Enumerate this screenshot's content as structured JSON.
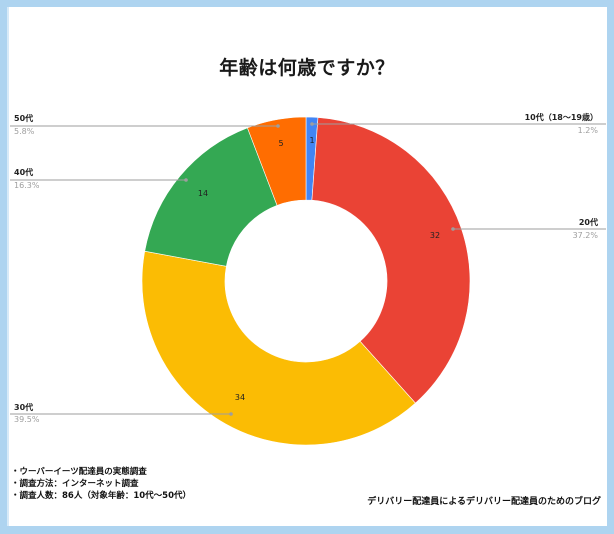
{
  "chart_data": {
    "type": "pie",
    "variant": "donut",
    "title": "年齢は何歳ですか？",
    "categories": [
      "10代（18〜19歳）",
      "20代",
      "30代",
      "40代",
      "50代"
    ],
    "values": [
      1,
      32,
      34,
      14,
      5
    ],
    "percentages": [
      "1.2%",
      "37.2%",
      "39.5%",
      "16.3%",
      "5.8%"
    ],
    "colors": [
      "#4285f4",
      "#ea4335",
      "#fbbc04",
      "#34a853",
      "#ff6d01"
    ],
    "total": 86,
    "start_angle_deg": 0,
    "direction": "clockwise",
    "legend_position": "callout labels"
  },
  "labels": {
    "teens": {
      "name": "10代（18〜19歳）",
      "pct": "1.2%",
      "value": "1"
    },
    "twenties": {
      "name": "20代",
      "pct": "37.2%",
      "value": "32"
    },
    "thirties": {
      "name": "30代",
      "pct": "39.5%",
      "value": "34"
    },
    "forties": {
      "name": "40代",
      "pct": "16.3%",
      "value": "14"
    },
    "fifties": {
      "name": "50代",
      "pct": "5.8%",
      "value": "5"
    }
  },
  "notes": [
    "・ウーバーイーツ配達員の実態調査",
    "・調査方法：インターネット調査",
    "・調査人数：86人（対象年齢：10代〜50代）"
  ],
  "credit": "デリバリー配達員によるデリバリー配達員のためのブログ"
}
